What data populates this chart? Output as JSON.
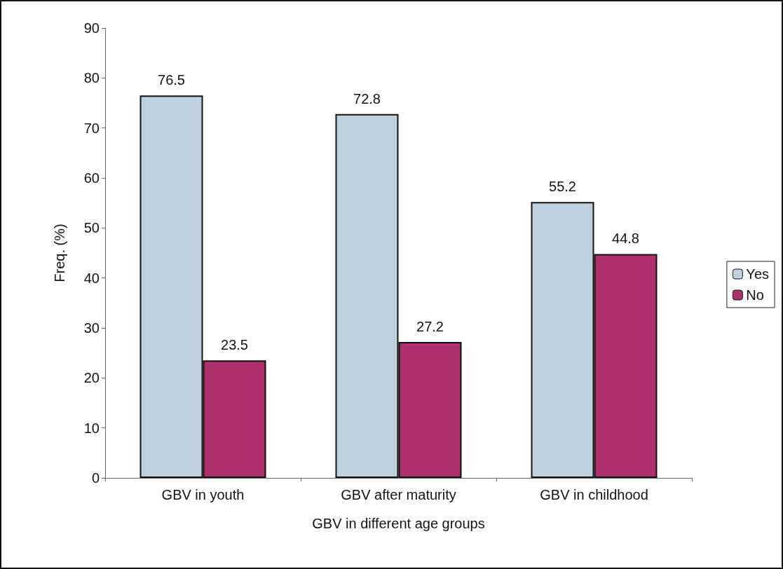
{
  "chart_data": {
    "type": "bar",
    "xlabel": "GBV in different age groups",
    "ylabel": "Freq. (%)",
    "categories": [
      "GBV in youth",
      "GBV after maturity",
      "GBV in childhood"
    ],
    "series": [
      {
        "name": "Yes",
        "color": "#bcd0e0",
        "values": [
          76.5,
          72.8,
          55.2
        ]
      },
      {
        "name": "No",
        "color": "#b0306f",
        "values": [
          23.5,
          27.2,
          44.8
        ]
      }
    ],
    "ylim": [
      0,
      90
    ],
    "yticks": [
      0,
      10,
      20,
      30,
      40,
      50,
      60,
      70,
      80,
      90
    ],
    "grid": false,
    "legend": "right",
    "data_labels": true
  }
}
